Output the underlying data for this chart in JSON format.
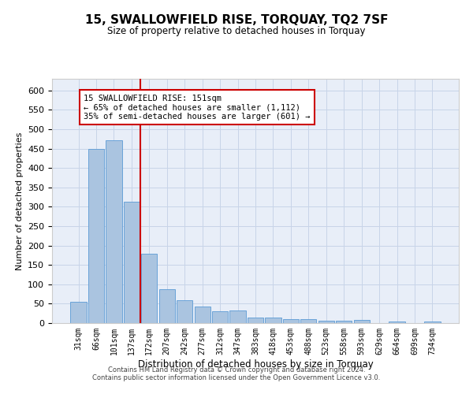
{
  "title": "15, SWALLOWFIELD RISE, TORQUAY, TQ2 7SF",
  "subtitle": "Size of property relative to detached houses in Torquay",
  "xlabel": "Distribution of detached houses by size in Torquay",
  "ylabel": "Number of detached properties",
  "categories": [
    "31sqm",
    "66sqm",
    "101sqm",
    "137sqm",
    "172sqm",
    "207sqm",
    "242sqm",
    "277sqm",
    "312sqm",
    "347sqm",
    "383sqm",
    "418sqm",
    "453sqm",
    "488sqm",
    "523sqm",
    "558sqm",
    "593sqm",
    "629sqm",
    "664sqm",
    "699sqm",
    "734sqm"
  ],
  "values": [
    55,
    450,
    472,
    312,
    178,
    88,
    58,
    43,
    30,
    32,
    15,
    15,
    10,
    10,
    7,
    7,
    8,
    0,
    5,
    0,
    5
  ],
  "bar_color": "#aac4e0",
  "bar_edgecolor": "#5b9bd5",
  "vline_color": "#cc0000",
  "annotation_line1": "15 SWALLOWFIELD RISE: 151sqm",
  "annotation_line2": "← 65% of detached houses are smaller (1,112)",
  "annotation_line3": "35% of semi-detached houses are larger (601) →",
  "annotation_box_color": "#ffffff",
  "annotation_box_edgecolor": "#cc0000",
  "ylim": [
    0,
    630
  ],
  "yticks": [
    0,
    50,
    100,
    150,
    200,
    250,
    300,
    350,
    400,
    450,
    500,
    550,
    600
  ],
  "background_color": "#e8eef8",
  "footer1": "Contains HM Land Registry data © Crown copyright and database right 2024.",
  "footer2": "Contains public sector information licensed under the Open Government Licence v3.0."
}
